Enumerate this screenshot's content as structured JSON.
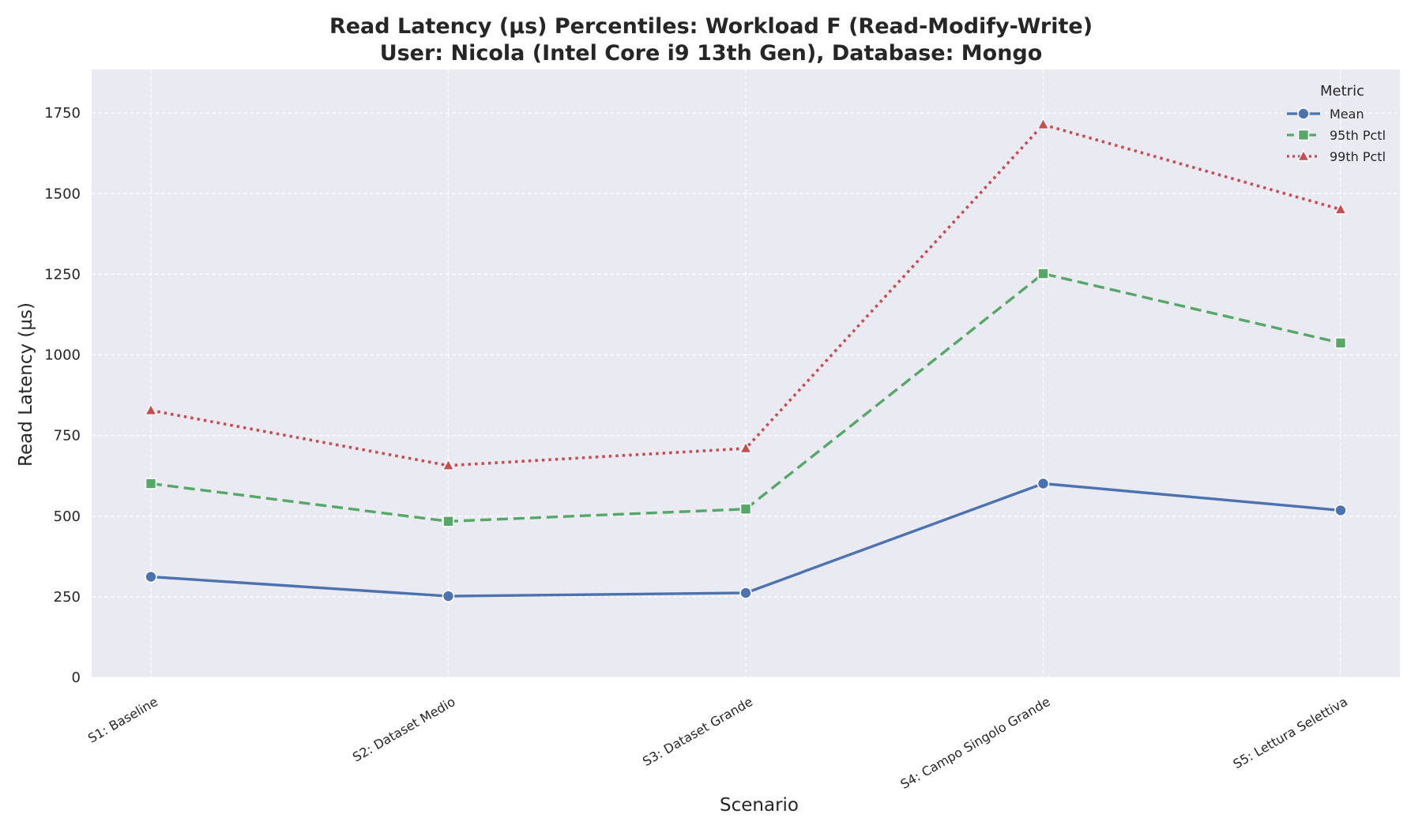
{
  "chart_data": {
    "type": "line",
    "title": "Read Latency (µs) Percentiles: Workload F (Read-Modify-Write)",
    "subtitle": "User: Nicola (Intel Core i9 13th Gen), Database: Mongo",
    "xlabel": "Scenario",
    "ylabel": "Read Latency (µs)",
    "categories": [
      "S1: Baseline",
      "S2: Dataset Medio",
      "S3: Dataset Grande",
      "S4: Campo Singolo Grande",
      "S5: Lettura Selettiva"
    ],
    "ylim": [
      0,
      1885
    ],
    "yticks": [
      0,
      250,
      500,
      750,
      1000,
      1250,
      1500,
      1750
    ],
    "grid": true,
    "legend": {
      "title": "Metric",
      "placement": "top-right"
    },
    "series": [
      {
        "name": "Mean",
        "color": "#4c72b0",
        "marker": "circle",
        "linestyle": "solid",
        "values": [
          312,
          252,
          262,
          601,
          518
        ]
      },
      {
        "name": "95th Pctl",
        "color": "#55a868",
        "marker": "square",
        "linestyle": "dashed",
        "values": [
          601,
          484,
          522,
          1252,
          1037
        ]
      },
      {
        "name": "99th Pctl",
        "color": "#c44e52",
        "marker": "triangle",
        "linestyle": "dotted",
        "values": [
          828,
          657,
          710,
          1714,
          1451
        ]
      }
    ],
    "colors": {
      "plot_background": "#eaeaf2",
      "grid": "#ffffff",
      "text": "#262626"
    }
  }
}
